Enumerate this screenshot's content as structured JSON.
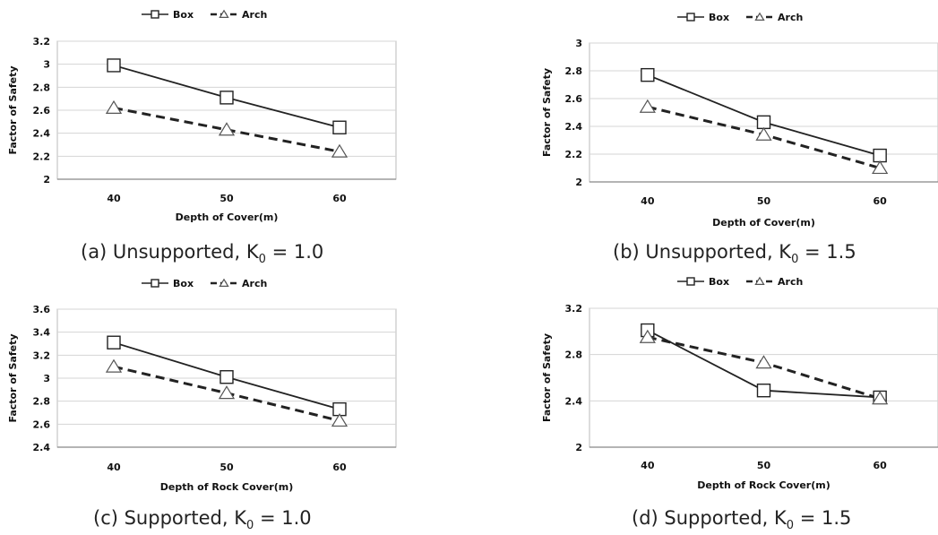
{
  "chart_data": [
    {
      "type": "line",
      "caption": {
        "prefix": "(a) Unsupported, K",
        "sub": "0",
        "suffix": " = 1.0"
      },
      "xlabel": "Depth of Cover(m)",
      "ylabel": "Factor of Safety",
      "categories": [
        "40",
        "50",
        "60"
      ],
      "yticks": [
        "2",
        "2.2",
        "2.4",
        "2.6",
        "2.8",
        "3",
        "3.2"
      ],
      "ylim": [
        2,
        3.2
      ],
      "grid": true,
      "legend": "top",
      "series": [
        {
          "name": "Box",
          "values": [
            2.99,
            2.71,
            2.45
          ],
          "style": "solid",
          "marker": "square"
        },
        {
          "name": "Arch",
          "values": [
            2.62,
            2.43,
            2.24
          ],
          "style": "dashed",
          "marker": "triangle"
        }
      ]
    },
    {
      "type": "line",
      "caption": {
        "prefix": "(b) Unsupported, K",
        "sub": "0",
        "suffix": " = 1.5"
      },
      "xlabel": "Depth of Cover(m)",
      "ylabel": "Factor of Safety",
      "categories": [
        "40",
        "50",
        "60"
      ],
      "yticks": [
        "2",
        "2.2",
        "2.4",
        "2.6",
        "2.8",
        "3"
      ],
      "ylim": [
        2,
        3
      ],
      "grid": true,
      "legend": "top",
      "series": [
        {
          "name": "Box",
          "values": [
            2.77,
            2.43,
            2.19
          ],
          "style": "solid",
          "marker": "square"
        },
        {
          "name": "Arch",
          "values": [
            2.54,
            2.34,
            2.1
          ],
          "style": "dashed",
          "marker": "triangle"
        }
      ]
    },
    {
      "type": "line",
      "caption": {
        "prefix": "(c) Supported, K",
        "sub": "0",
        "suffix": " = 1.0"
      },
      "xlabel": "Depth of Rock Cover(m)",
      "ylabel": "Factor of Safety",
      "categories": [
        "40",
        "50",
        "60"
      ],
      "yticks": [
        "2.4",
        "2.6",
        "2.8",
        "3",
        "3.2",
        "3.4",
        "3.6"
      ],
      "ylim": [
        2.4,
        3.6
      ],
      "grid": true,
      "legend": "top",
      "series": [
        {
          "name": "Box",
          "values": [
            3.31,
            3.01,
            2.73
          ],
          "style": "solid",
          "marker": "square"
        },
        {
          "name": "Arch",
          "values": [
            3.1,
            2.87,
            2.63
          ],
          "style": "dashed",
          "marker": "triangle"
        }
      ]
    },
    {
      "type": "line",
      "caption": {
        "prefix": "(d) Supported, K",
        "sub": "0",
        "suffix": " = 1.5"
      },
      "xlabel": "Depth of Rock Cover(m)",
      "ylabel": "Factor of Safety",
      "categories": [
        "40",
        "50",
        "60"
      ],
      "yticks": [
        "2",
        "2.4",
        "2.8",
        "3.2"
      ],
      "ylim": [
        2,
        3.2
      ],
      "grid": true,
      "legend": "top",
      "series": [
        {
          "name": "Box",
          "values": [
            3.01,
            2.49,
            2.43
          ],
          "style": "solid",
          "marker": "square"
        },
        {
          "name": "Arch",
          "values": [
            2.95,
            2.73,
            2.42
          ],
          "style": "dashed",
          "marker": "triangle"
        }
      ]
    }
  ]
}
